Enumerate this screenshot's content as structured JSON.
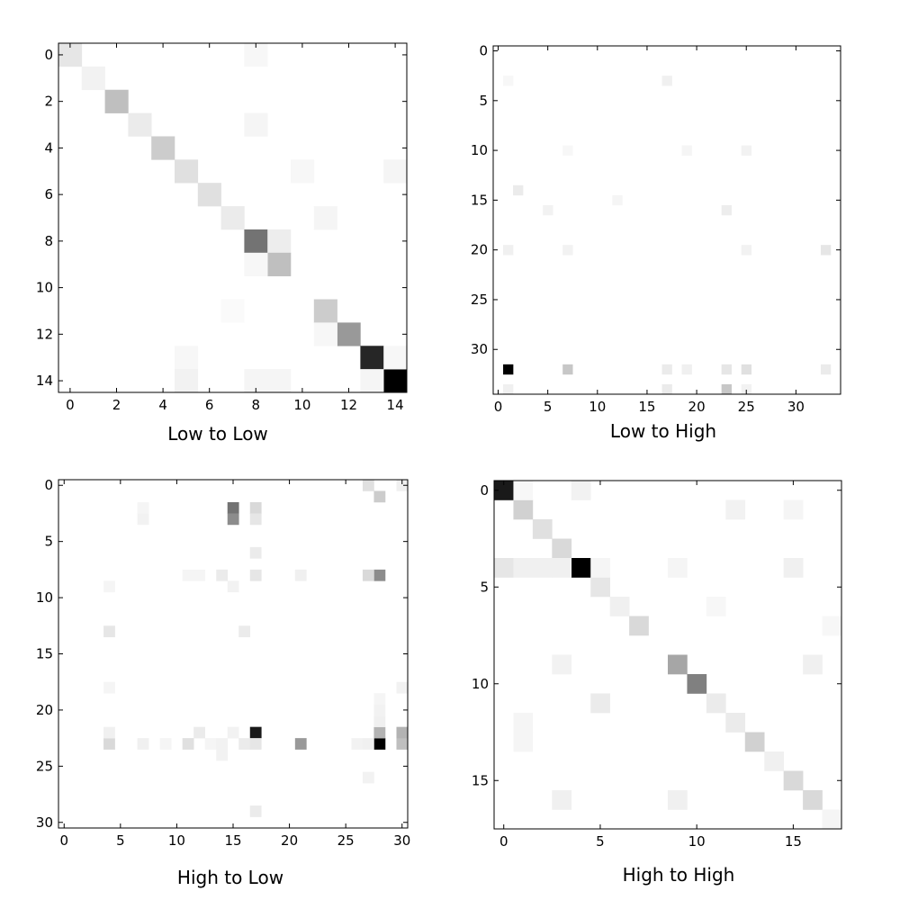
{
  "chart_data": [
    {
      "type": "heatmap",
      "title": "Low to Low",
      "xlabel": "",
      "ylabel": "",
      "size": 15,
      "xticks": [
        0,
        2,
        4,
        6,
        8,
        10,
        12,
        14
      ],
      "yticks": [
        0,
        2,
        4,
        6,
        8,
        10,
        12,
        14
      ],
      "colormap": "gray_r",
      "cells": [
        [
          0,
          0,
          0.1
        ],
        [
          1,
          1,
          0.05
        ],
        [
          2,
          2,
          0.25
        ],
        [
          3,
          3,
          0.08
        ],
        [
          4,
          4,
          0.2
        ],
        [
          5,
          5,
          0.12
        ],
        [
          6,
          6,
          0.12
        ],
        [
          7,
          7,
          0.08
        ],
        [
          8,
          8,
          0.55
        ],
        [
          8,
          9,
          0.07
        ],
        [
          9,
          9,
          0.25
        ],
        [
          11,
          11,
          0.2
        ],
        [
          12,
          12,
          0.4
        ],
        [
          13,
          13,
          0.85
        ],
        [
          14,
          14,
          1.0
        ],
        [
          0,
          8,
          0.03
        ],
        [
          3,
          8,
          0.04
        ],
        [
          5,
          10,
          0.03
        ],
        [
          5,
          14,
          0.04
        ],
        [
          7,
          11,
          0.04
        ],
        [
          9,
          8,
          0.03
        ],
        [
          11,
          7,
          0.02
        ],
        [
          13,
          5,
          0.03
        ],
        [
          14,
          5,
          0.05
        ],
        [
          14,
          8,
          0.04
        ],
        [
          14,
          9,
          0.04
        ],
        [
          14,
          13,
          0.04
        ],
        [
          13,
          14,
          0.03
        ],
        [
          12,
          11,
          0.03
        ]
      ]
    },
    {
      "type": "heatmap",
      "title": "Low to High",
      "xlabel": "",
      "ylabel": "",
      "size": 35,
      "xticks": [
        0,
        5,
        10,
        15,
        20,
        25,
        30
      ],
      "yticks": [
        0,
        5,
        10,
        15,
        20,
        25,
        30
      ],
      "colormap": "gray_r",
      "cells": [
        [
          32,
          1,
          1.0
        ],
        [
          32,
          7,
          0.22
        ],
        [
          32,
          17,
          0.08
        ],
        [
          32,
          19,
          0.06
        ],
        [
          32,
          23,
          0.1
        ],
        [
          32,
          25,
          0.12
        ],
        [
          32,
          33,
          0.08
        ],
        [
          34,
          1,
          0.06
        ],
        [
          34,
          17,
          0.08
        ],
        [
          34,
          23,
          0.22
        ],
        [
          34,
          25,
          0.05
        ],
        [
          20,
          1,
          0.06
        ],
        [
          20,
          7,
          0.05
        ],
        [
          20,
          25,
          0.05
        ],
        [
          20,
          33,
          0.1
        ],
        [
          14,
          2,
          0.08
        ],
        [
          16,
          5,
          0.05
        ],
        [
          16,
          23,
          0.07
        ],
        [
          15,
          12,
          0.04
        ],
        [
          3,
          17,
          0.06
        ],
        [
          3,
          1,
          0.03
        ],
        [
          10,
          25,
          0.05
        ],
        [
          10,
          19,
          0.04
        ],
        [
          10,
          7,
          0.03
        ]
      ]
    },
    {
      "type": "heatmap",
      "title": "High to Low",
      "xlabel": "",
      "ylabel": "",
      "size": 31,
      "xticks": [
        0,
        5,
        10,
        15,
        20,
        25,
        30
      ],
      "yticks": [
        0,
        5,
        10,
        15,
        20,
        25,
        30
      ],
      "colormap": "gray_r",
      "cells": [
        [
          22,
          17,
          0.9
        ],
        [
          23,
          28,
          1.0
        ],
        [
          8,
          28,
          0.45
        ],
        [
          2,
          15,
          0.55
        ],
        [
          3,
          15,
          0.45
        ],
        [
          2,
          17,
          0.15
        ],
        [
          3,
          17,
          0.1
        ],
        [
          23,
          21,
          0.4
        ],
        [
          22,
          28,
          0.3
        ],
        [
          23,
          30,
          0.25
        ],
        [
          22,
          30,
          0.3
        ],
        [
          0,
          27,
          0.12
        ],
        [
          1,
          28,
          0.2
        ],
        [
          0,
          30,
          0.06
        ],
        [
          8,
          27,
          0.15
        ],
        [
          23,
          4,
          0.15
        ],
        [
          23,
          11,
          0.12
        ],
        [
          22,
          12,
          0.08
        ],
        [
          13,
          4,
          0.1
        ],
        [
          13,
          16,
          0.08
        ],
        [
          8,
          17,
          0.1
        ],
        [
          6,
          17,
          0.08
        ],
        [
          8,
          14,
          0.08
        ],
        [
          8,
          21,
          0.06
        ],
        [
          23,
          7,
          0.06
        ],
        [
          23,
          16,
          0.08
        ],
        [
          23,
          17,
          0.1
        ],
        [
          22,
          4,
          0.06
        ],
        [
          24,
          14,
          0.05
        ],
        [
          29,
          17,
          0.08
        ],
        [
          26,
          27,
          0.05
        ],
        [
          3,
          7,
          0.05
        ],
        [
          2,
          7,
          0.04
        ],
        [
          9,
          4,
          0.04
        ],
        [
          9,
          15,
          0.05
        ],
        [
          21,
          28,
          0.06
        ],
        [
          20,
          28,
          0.05
        ],
        [
          19,
          28,
          0.04
        ],
        [
          18,
          30,
          0.05
        ],
        [
          18,
          4,
          0.04
        ],
        [
          23,
          9,
          0.04
        ],
        [
          23,
          26,
          0.05
        ],
        [
          23,
          27,
          0.06
        ],
        [
          8,
          11,
          0.04
        ],
        [
          8,
          12,
          0.04
        ],
        [
          23,
          13,
          0.04
        ],
        [
          23,
          14,
          0.05
        ],
        [
          22,
          15,
          0.05
        ]
      ]
    },
    {
      "type": "heatmap",
      "title": "High to High",
      "xlabel": "",
      "ylabel": "",
      "size": 18,
      "xticks": [
        0,
        5,
        10,
        15
      ],
      "yticks": [
        0,
        5,
        10,
        15
      ],
      "colormap": "gray_r",
      "cells": [
        [
          0,
          0,
          0.9
        ],
        [
          1,
          1,
          0.18
        ],
        [
          2,
          2,
          0.12
        ],
        [
          3,
          3,
          0.15
        ],
        [
          4,
          4,
          1.0
        ],
        [
          5,
          5,
          0.1
        ],
        [
          6,
          6,
          0.06
        ],
        [
          7,
          7,
          0.15
        ],
        [
          9,
          9,
          0.35
        ],
        [
          10,
          10,
          0.5
        ],
        [
          11,
          11,
          0.08
        ],
        [
          12,
          12,
          0.08
        ],
        [
          13,
          13,
          0.18
        ],
        [
          14,
          14,
          0.06
        ],
        [
          15,
          15,
          0.15
        ],
        [
          16,
          16,
          0.15
        ],
        [
          17,
          17,
          0.05
        ],
        [
          4,
          0,
          0.1
        ],
        [
          4,
          1,
          0.06
        ],
        [
          4,
          2,
          0.06
        ],
        [
          4,
          3,
          0.06
        ],
        [
          4,
          5,
          0.04
        ],
        [
          4,
          15,
          0.06
        ],
        [
          4,
          9,
          0.04
        ],
        [
          0,
          4,
          0.05
        ],
        [
          0,
          1,
          0.03
        ],
        [
          1,
          12,
          0.05
        ],
        [
          1,
          15,
          0.04
        ],
        [
          11,
          5,
          0.08
        ],
        [
          16,
          3,
          0.06
        ],
        [
          16,
          9,
          0.06
        ],
        [
          9,
          16,
          0.06
        ],
        [
          9,
          3,
          0.05
        ],
        [
          12,
          1,
          0.04
        ],
        [
          13,
          1,
          0.04
        ],
        [
          6,
          11,
          0.03
        ],
        [
          17,
          17,
          0.04
        ],
        [
          7,
          17,
          0.03
        ]
      ]
    }
  ]
}
